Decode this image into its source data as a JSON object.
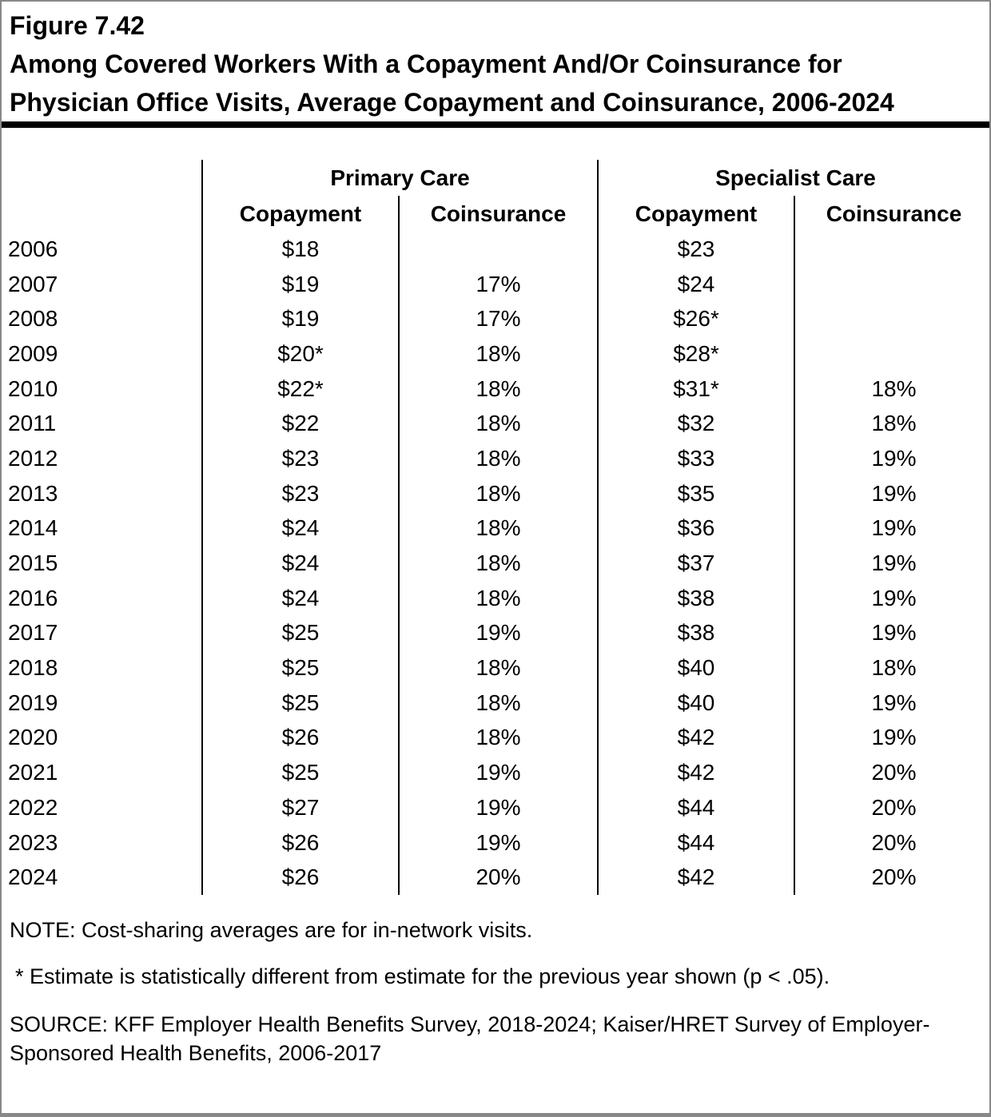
{
  "figure_label": "Figure 7.42",
  "title": "Among Covered Workers With a Copayment And/Or Coinsurance for Physician Office Visits, Average Copayment and Coinsurance, 2006-2024",
  "chart_data": {
    "type": "table",
    "column_groups": [
      {
        "label": "Primary Care"
      },
      {
        "label": "Specialist Care"
      }
    ],
    "column_headers": {
      "pc_copay": "Copayment",
      "pc_coins": "Coinsurance",
      "sc_copay": "Copayment",
      "sc_coins": "Coinsurance"
    },
    "rows": [
      {
        "year": "2006",
        "pc_copay": "$18",
        "pc_coins": "",
        "sc_copay": "$23",
        "sc_coins": ""
      },
      {
        "year": "2007",
        "pc_copay": "$19",
        "pc_coins": "17%",
        "sc_copay": "$24",
        "sc_coins": ""
      },
      {
        "year": "2008",
        "pc_copay": "$19",
        "pc_coins": "17%",
        "sc_copay": "$26*",
        "sc_coins": ""
      },
      {
        "year": "2009",
        "pc_copay": "$20*",
        "pc_coins": "18%",
        "sc_copay": "$28*",
        "sc_coins": ""
      },
      {
        "year": "2010",
        "pc_copay": "$22*",
        "pc_coins": "18%",
        "sc_copay": "$31*",
        "sc_coins": "18%"
      },
      {
        "year": "2011",
        "pc_copay": "$22",
        "pc_coins": "18%",
        "sc_copay": "$32",
        "sc_coins": "18%"
      },
      {
        "year": "2012",
        "pc_copay": "$23",
        "pc_coins": "18%",
        "sc_copay": "$33",
        "sc_coins": "19%"
      },
      {
        "year": "2013",
        "pc_copay": "$23",
        "pc_coins": "18%",
        "sc_copay": "$35",
        "sc_coins": "19%"
      },
      {
        "year": "2014",
        "pc_copay": "$24",
        "pc_coins": "18%",
        "sc_copay": "$36",
        "sc_coins": "19%"
      },
      {
        "year": "2015",
        "pc_copay": "$24",
        "pc_coins": "18%",
        "sc_copay": "$37",
        "sc_coins": "19%"
      },
      {
        "year": "2016",
        "pc_copay": "$24",
        "pc_coins": "18%",
        "sc_copay": "$38",
        "sc_coins": "19%"
      },
      {
        "year": "2017",
        "pc_copay": "$25",
        "pc_coins": "19%",
        "sc_copay": "$38",
        "sc_coins": "19%"
      },
      {
        "year": "2018",
        "pc_copay": "$25",
        "pc_coins": "18%",
        "sc_copay": "$40",
        "sc_coins": "18%"
      },
      {
        "year": "2019",
        "pc_copay": "$25",
        "pc_coins": "18%",
        "sc_copay": "$40",
        "sc_coins": "19%"
      },
      {
        "year": "2020",
        "pc_copay": "$26",
        "pc_coins": "18%",
        "sc_copay": "$42",
        "sc_coins": "19%"
      },
      {
        "year": "2021",
        "pc_copay": "$25",
        "pc_coins": "19%",
        "sc_copay": "$42",
        "sc_coins": "20%"
      },
      {
        "year": "2022",
        "pc_copay": "$27",
        "pc_coins": "19%",
        "sc_copay": "$44",
        "sc_coins": "20%"
      },
      {
        "year": "2023",
        "pc_copay": "$26",
        "pc_coins": "19%",
        "sc_copay": "$44",
        "sc_coins": "20%"
      },
      {
        "year": "2024",
        "pc_copay": "$26",
        "pc_coins": "20%",
        "sc_copay": "$42",
        "sc_coins": "20%"
      }
    ]
  },
  "notes": {
    "note": "NOTE: Cost-sharing averages are for in-network visits.",
    "asterisk": "* Estimate is statistically different from estimate for the previous year shown (p < .05).",
    "source": "SOURCE: KFF Employer Health Benefits Survey, 2018-2024; Kaiser/HRET Survey of Employer-Sponsored Health Benefits, 2006-2017"
  },
  "colors": {
    "text": "#000000",
    "background": "#ffffff",
    "frame_border": "#888888",
    "divider_rule": "#000000",
    "table_lines": "#000000"
  }
}
